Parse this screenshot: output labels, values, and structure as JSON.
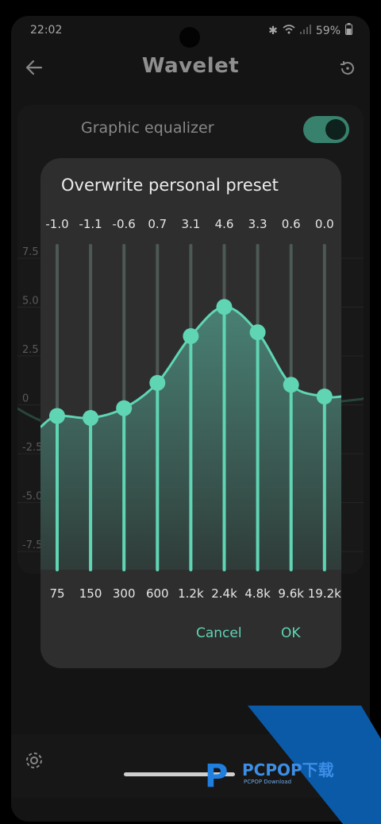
{
  "status": {
    "time": "22:02",
    "battery": "59%",
    "icons": [
      "bluetooth-icon",
      "wifi-icon",
      "signal-icon",
      "battery-icon"
    ]
  },
  "appbar": {
    "title": "Wavelet"
  },
  "card": {
    "label": "Graphic equalizer",
    "toggle_on": true
  },
  "background_axis": [
    "7.5",
    "5.0",
    "2.5",
    "0",
    "-2.5",
    "-5.0",
    "-7.5"
  ],
  "dialog": {
    "title": "Overwrite personal preset",
    "cancel_label": "Cancel",
    "ok_label": "OK",
    "bands": [
      {
        "freq": "75",
        "gain": -1.0,
        "gain_label": "-1.0"
      },
      {
        "freq": "150",
        "gain": -1.1,
        "gain_label": "-1.1"
      },
      {
        "freq": "300",
        "gain": -0.6,
        "gain_label": "-0.6"
      },
      {
        "freq": "600",
        "gain": 0.7,
        "gain_label": "0.7"
      },
      {
        "freq": "1.2k",
        "gain": 3.1,
        "gain_label": "3.1"
      },
      {
        "freq": "2.4k",
        "gain": 4.6,
        "gain_label": "4.6"
      },
      {
        "freq": "4.8k",
        "gain": 3.3,
        "gain_label": "3.3"
      },
      {
        "freq": "9.6k",
        "gain": 0.6,
        "gain_label": "0.6"
      },
      {
        "freq": "19.2k",
        "gain": 0.0,
        "gain_label": "0.0"
      }
    ],
    "gain_range": [
      -10,
      10
    ]
  },
  "watermark": {
    "text": "PCPOP下载",
    "sub": "PCPOP Download"
  },
  "colors": {
    "accent": "#5fd5b4",
    "background": "#1f1f1f",
    "dialog": "#2e2e2e"
  }
}
